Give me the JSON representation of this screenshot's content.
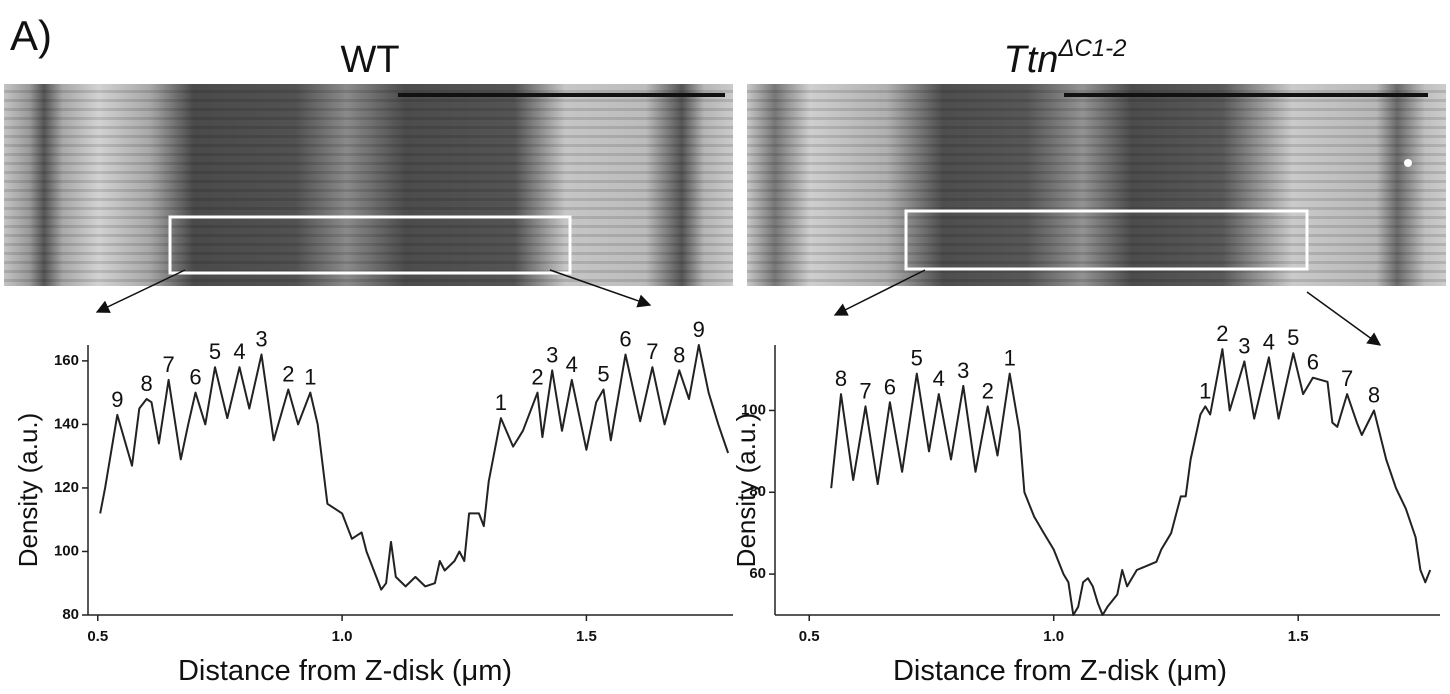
{
  "panel_label": "A)",
  "chart_data": [
    {
      "type": "line",
      "title": "WT",
      "x_label": "Distance from Z-disk (μm)",
      "y_label": "Density (a.u.)",
      "xlim": [
        0.48,
        1.8
      ],
      "xticks": [
        0.5,
        {
          "value": 1,
          "label": "1.0"
        },
        1.5
      ],
      "ylim": [
        80,
        165
      ],
      "yticks": [
        80,
        100,
        120,
        140,
        160
      ],
      "color": "#222222",
      "x": [
        0.505,
        0.515,
        0.54,
        0.57,
        0.585,
        0.6,
        0.61,
        0.625,
        0.645,
        0.67,
        0.685,
        0.7,
        0.72,
        0.74,
        0.765,
        0.79,
        0.81,
        0.835,
        0.86,
        0.89,
        0.91,
        0.935,
        0.95,
        0.97,
        1.0,
        1.02,
        1.04,
        1.05,
        1.07,
        1.08,
        1.09,
        1.1,
        1.11,
        1.13,
        1.15,
        1.17,
        1.19,
        1.2,
        1.21,
        1.23,
        1.24,
        1.25,
        1.26,
        1.28,
        1.29,
        1.3,
        1.325,
        1.35,
        1.37,
        1.4,
        1.41,
        1.43,
        1.45,
        1.47,
        1.5,
        1.52,
        1.535,
        1.55,
        1.58,
        1.61,
        1.635,
        1.66,
        1.69,
        1.71,
        1.73,
        1.75,
        1.77,
        1.79
      ],
      "values": [
        112,
        120,
        143,
        127,
        145,
        148,
        147,
        134,
        154,
        129,
        140,
        150,
        140,
        158,
        142,
        158,
        145,
        162,
        135,
        151,
        140,
        150,
        140,
        115,
        112,
        104,
        106,
        100,
        92,
        88,
        90,
        103,
        92,
        89,
        92,
        89,
        90,
        97,
        94,
        97,
        100,
        97,
        112,
        112,
        108,
        122,
        142,
        133,
        138,
        150,
        136,
        157,
        138,
        154,
        132,
        147,
        151,
        135,
        162,
        141,
        158,
        140,
        157,
        148,
        165,
        150,
        140,
        131
      ],
      "peaks": [
        {
          "label": "9",
          "x": 0.54,
          "y": 143
        },
        {
          "label": "8",
          "x": 0.6,
          "y": 148
        },
        {
          "label": "7",
          "x": 0.645,
          "y": 154
        },
        {
          "label": "6",
          "x": 0.7,
          "y": 150
        },
        {
          "label": "5",
          "x": 0.74,
          "y": 158
        },
        {
          "label": "4",
          "x": 0.79,
          "y": 158
        },
        {
          "label": "3",
          "x": 0.835,
          "y": 162
        },
        {
          "label": "2",
          "x": 0.89,
          "y": 151
        },
        {
          "label": "1",
          "x": 0.935,
          "y": 150
        },
        {
          "label": "1",
          "x": 1.325,
          "y": 142
        },
        {
          "label": "2",
          "x": 1.4,
          "y": 150
        },
        {
          "label": "3",
          "x": 1.43,
          "y": 157
        },
        {
          "label": "4",
          "x": 1.47,
          "y": 154
        },
        {
          "label": "5",
          "x": 1.535,
          "y": 151
        },
        {
          "label": "6",
          "x": 1.58,
          "y": 162
        },
        {
          "label": "7",
          "x": 1.635,
          "y": 158
        },
        {
          "label": "8",
          "x": 1.69,
          "y": 157
        },
        {
          "label": "9",
          "x": 1.73,
          "y": 165
        }
      ]
    },
    {
      "type": "line",
      "title": "Ttn",
      "title_superscript": "ΔC1-2",
      "x_label": "Distance from Z-disk (μm)",
      "y_label": "Density (a.u.)",
      "xlim": [
        0.43,
        1.79
      ],
      "xticks": [
        0.5,
        {
          "value": 1,
          "label": "1.0"
        },
        1.5
      ],
      "ylim": [
        50,
        116
      ],
      "yticks": [
        60,
        80,
        100
      ],
      "color": "#222222",
      "x": [
        0.545,
        0.565,
        0.59,
        0.615,
        0.64,
        0.665,
        0.69,
        0.72,
        0.745,
        0.765,
        0.79,
        0.815,
        0.84,
        0.865,
        0.885,
        0.91,
        0.93,
        0.94,
        0.96,
        0.98,
        1.0,
        1.02,
        1.03,
        1.04,
        1.05,
        1.06,
        1.07,
        1.08,
        1.09,
        1.1,
        1.11,
        1.13,
        1.14,
        1.15,
        1.17,
        1.19,
        1.21,
        1.22,
        1.24,
        1.26,
        1.27,
        1.28,
        1.3,
        1.31,
        1.32,
        1.345,
        1.36,
        1.39,
        1.41,
        1.44,
        1.46,
        1.49,
        1.51,
        1.53,
        1.56,
        1.57,
        1.58,
        1.6,
        1.62,
        1.63,
        1.655,
        1.68,
        1.7,
        1.72,
        1.74,
        1.75,
        1.76,
        1.77
      ],
      "values": [
        81,
        104,
        83,
        101,
        82,
        102,
        85,
        109,
        90,
        104,
        88,
        106,
        85,
        101,
        89,
        109,
        95,
        80,
        74,
        70,
        66,
        60,
        58,
        50,
        52,
        58,
        59,
        57,
        53,
        50,
        52,
        55,
        61,
        57,
        61,
        62,
        63,
        66,
        70,
        79,
        79,
        88,
        99,
        101,
        99,
        115,
        100,
        112,
        98,
        113,
        98,
        114,
        104,
        108,
        107,
        97,
        96,
        104,
        97,
        94,
        100,
        88,
        81,
        76,
        69,
        61,
        58,
        61
      ],
      "peaks": [
        {
          "label": "8",
          "x": 0.565,
          "y": 104
        },
        {
          "label": "7",
          "x": 0.615,
          "y": 101
        },
        {
          "label": "6",
          "x": 0.665,
          "y": 102
        },
        {
          "label": "5",
          "x": 0.72,
          "y": 109
        },
        {
          "label": "4",
          "x": 0.765,
          "y": 104
        },
        {
          "label": "3",
          "x": 0.815,
          "y": 106
        },
        {
          "label": "2",
          "x": 0.865,
          "y": 101
        },
        {
          "label": "1",
          "x": 0.91,
          "y": 109
        },
        {
          "label": "1",
          "x": 1.31,
          "y": 101
        },
        {
          "label": "2",
          "x": 1.345,
          "y": 115
        },
        {
          "label": "3",
          "x": 1.39,
          "y": 112
        },
        {
          "label": "4",
          "x": 1.44,
          "y": 113
        },
        {
          "label": "5",
          "x": 1.49,
          "y": 114
        },
        {
          "label": "6",
          "x": 1.53,
          "y": 108
        },
        {
          "label": "7",
          "x": 1.6,
          "y": 104
        },
        {
          "label": "8",
          "x": 1.655,
          "y": 100
        }
      ]
    }
  ]
}
